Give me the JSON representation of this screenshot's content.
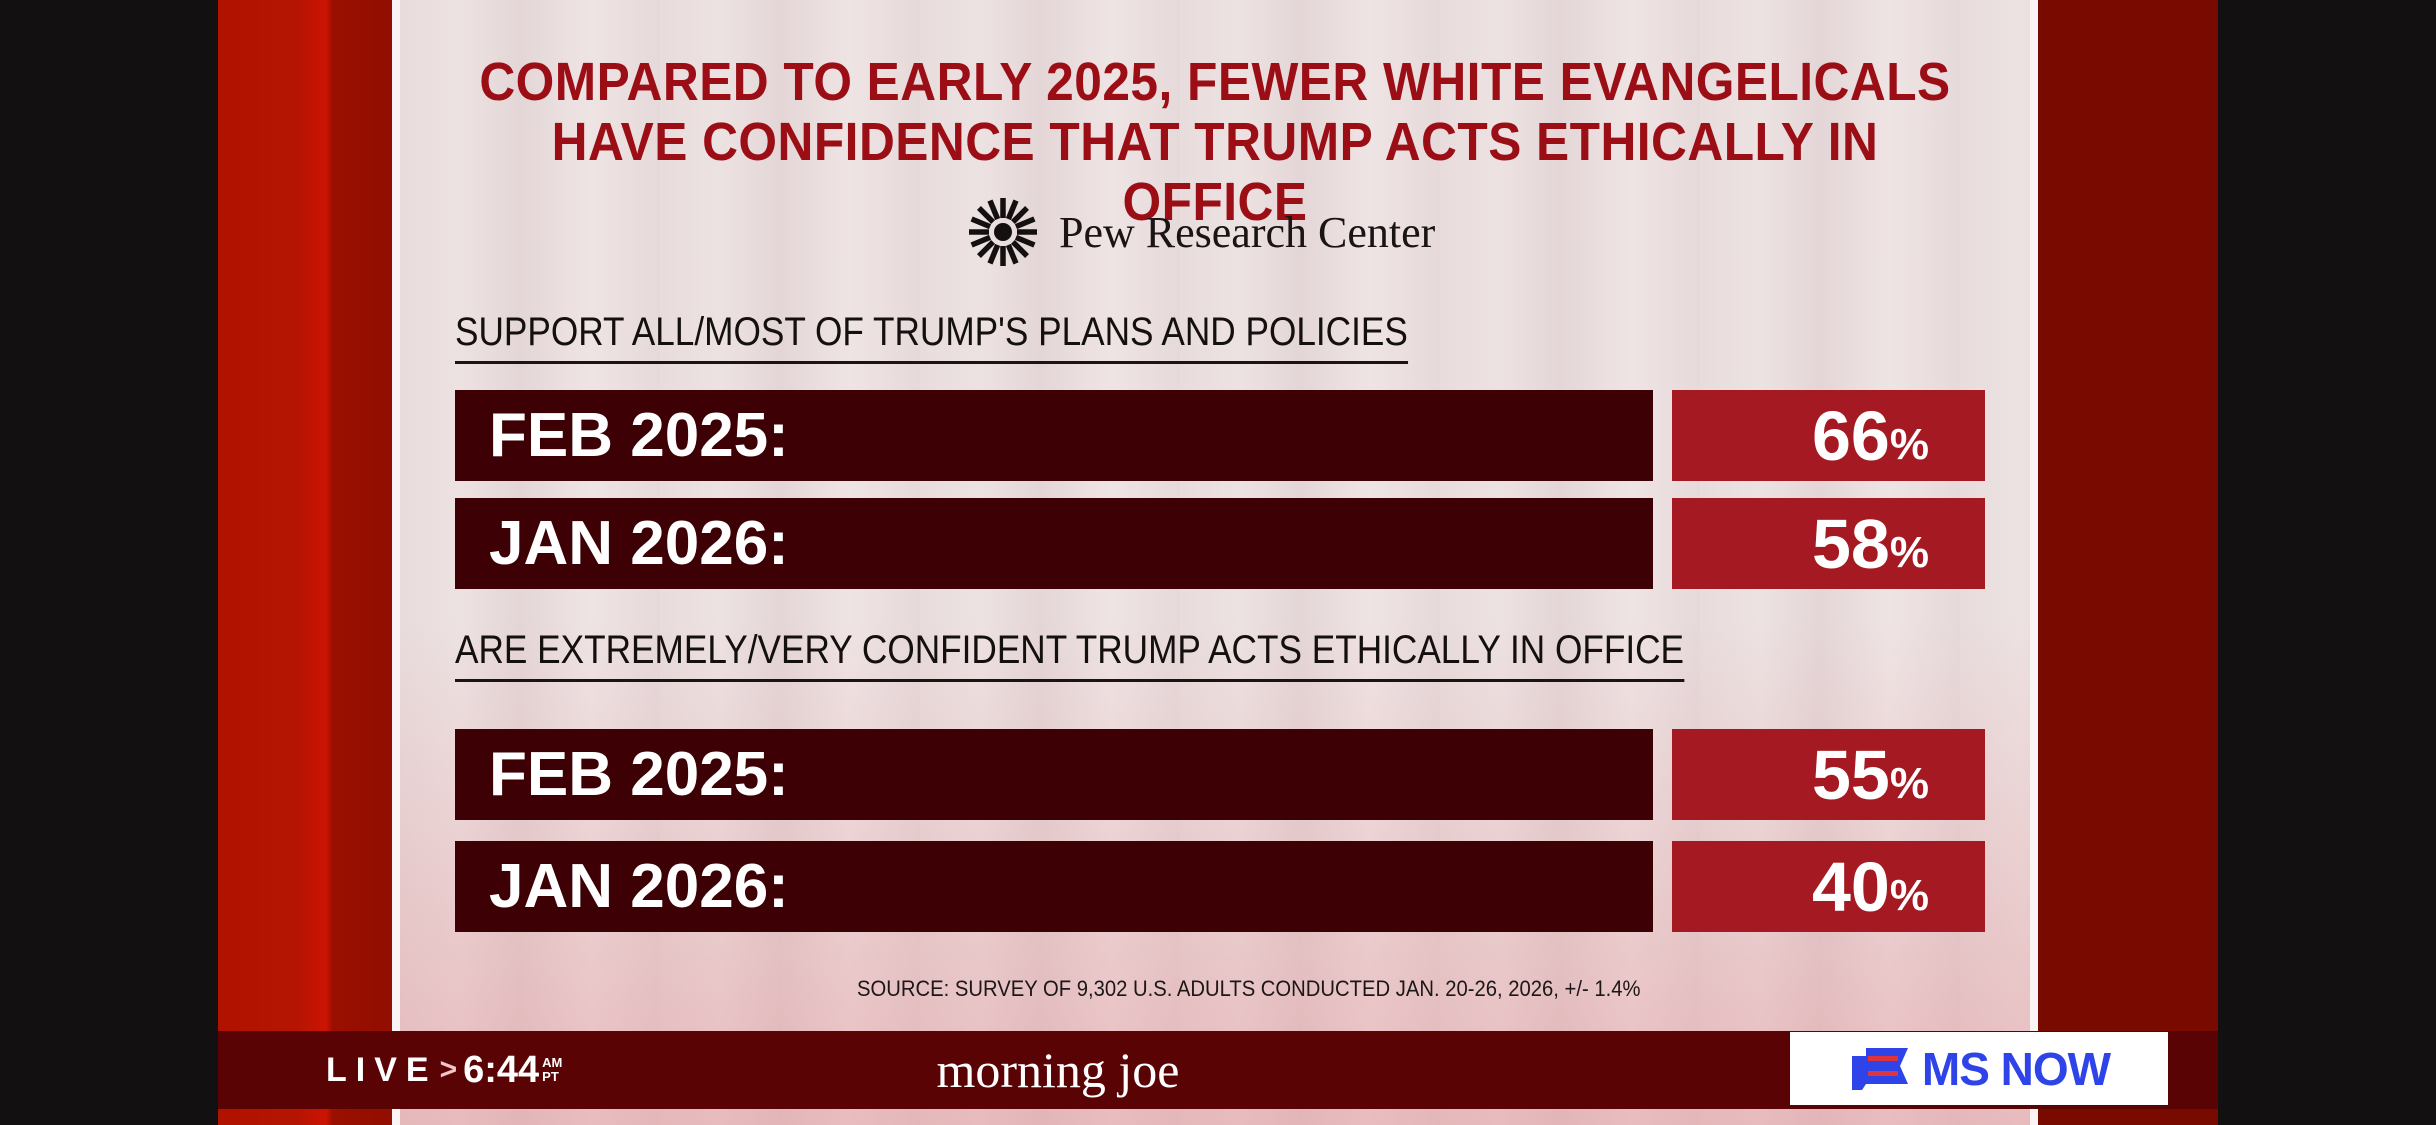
{
  "graphic": {
    "title_line1": "COMPARED TO EARLY 2025, FEWER WHITE EVANGELICALS",
    "title_line2": "HAVE CONFIDENCE THAT TRUMP ACTS ETHICALLY IN OFFICE",
    "source_org": "Pew Research Center",
    "source_note": "SOURCE: SURVEY OF 9,302 U.S. ADULTS CONDUCTED JAN. 20-26, 2026, +/- 1.4%"
  },
  "chart_data": {
    "type": "table",
    "title": "COMPARED TO EARLY 2025, FEWER WHITE EVANGELICALS HAVE CONFIDENCE THAT TRUMP ACTS ETHICALLY IN OFFICE",
    "unit": "%",
    "groups": [
      {
        "heading": "SUPPORT ALL/MOST OF TRUMP'S PLANS AND POLICIES",
        "rows": [
          {
            "label": "FEB 2025:",
            "value": 66
          },
          {
            "label": "JAN 2026:",
            "value": 58
          }
        ]
      },
      {
        "heading": "ARE EXTREMELY/VERY CONFIDENT TRUMP ACTS ETHICALLY IN OFFICE",
        "rows": [
          {
            "label": "FEB 2025:",
            "value": 55
          },
          {
            "label": "JAN 2026:",
            "value": 40
          }
        ]
      }
    ]
  },
  "lower_third": {
    "live_label": "LIVE",
    "separator": ">",
    "time": "6:44",
    "ampm": "AM",
    "timezone": "PT",
    "show_name": "morning joe",
    "network": "MS NOW"
  },
  "colors": {
    "title_red": "#9c0e16",
    "label_bar": "#3d0004",
    "value_box": "#a51a22",
    "lower_third_bg": "#5a0304",
    "network_blue": "#2e44e8",
    "network_red": "#e0343c"
  }
}
